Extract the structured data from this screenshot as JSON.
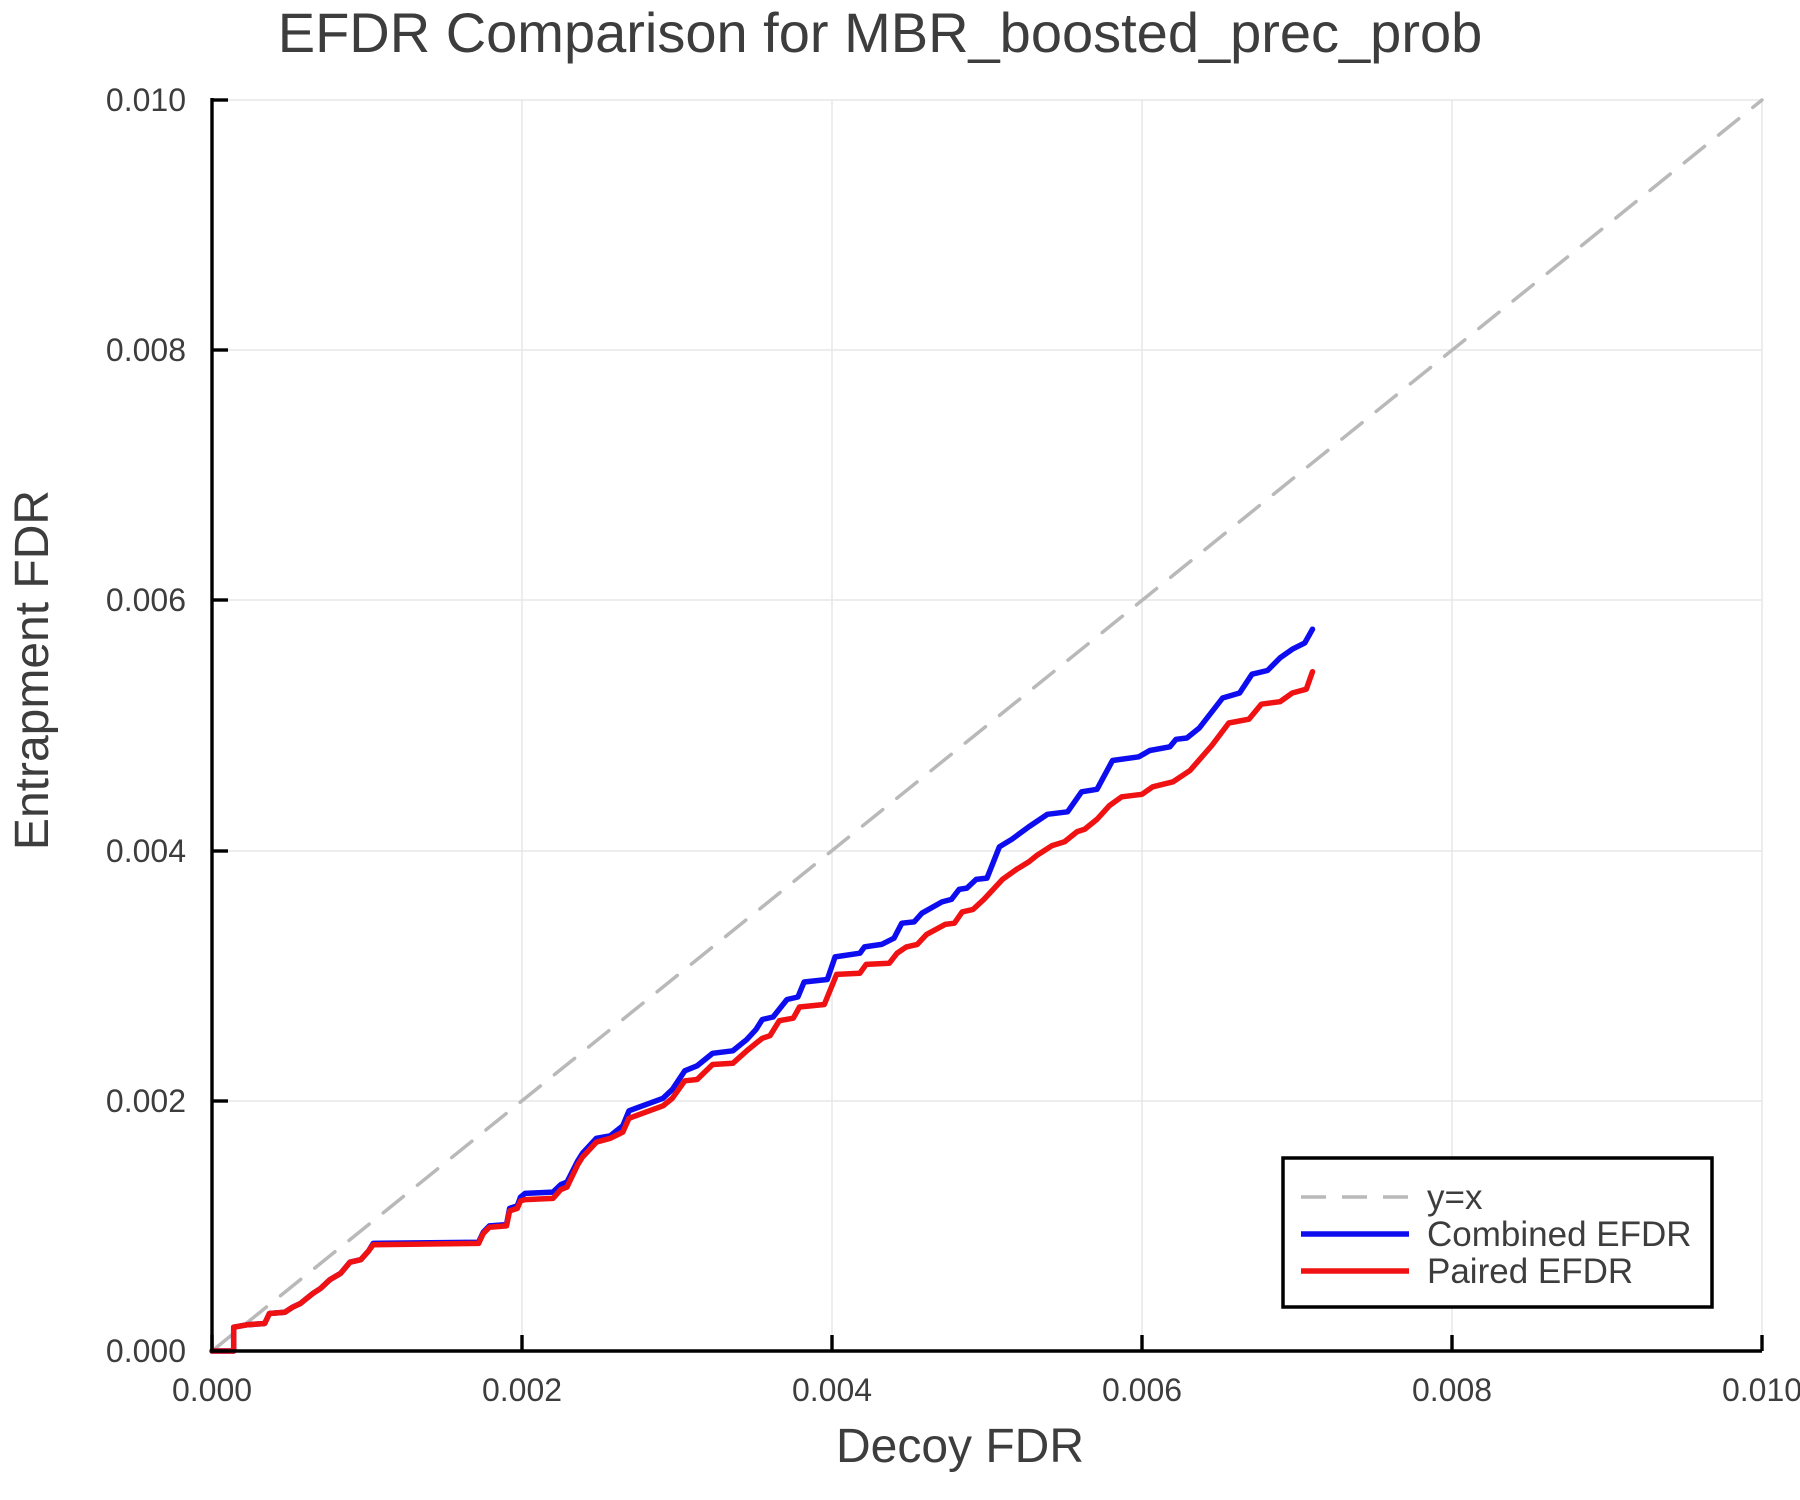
{
  "chart_data": {
    "type": "line",
    "title": "EFDR Comparison for MBR_boosted_prec_prob",
    "xlabel": "Decoy FDR",
    "ylabel": "Entrapment FDR",
    "xlim": [
      0,
      0.01
    ],
    "ylim": [
      0,
      0.01
    ],
    "grid": true,
    "legend_position": "lower right",
    "x_ticks": {
      "values": [
        0,
        0.002,
        0.004,
        0.006,
        0.008,
        0.01
      ],
      "labels": [
        "0.000",
        "0.002",
        "0.004",
        "0.006",
        "0.008",
        "0.010"
      ]
    },
    "y_ticks": {
      "values": [
        0,
        0.002,
        0.004,
        0.006,
        0.008,
        0.01
      ],
      "labels": [
        "0.000",
        "0.002",
        "0.004",
        "0.006",
        "0.008",
        "0.010"
      ]
    },
    "series": [
      {
        "key": "y-equals-x",
        "name": "y=x",
        "color": "#b9b9b9",
        "width": 3.5,
        "dash": [
          26,
          18
        ],
        "points": [
          [
            0,
            0
          ],
          [
            0.01,
            0.01
          ]
        ]
      },
      {
        "key": "combined-efdr",
        "name": "Combined EFDR",
        "color": "#0d0df0",
        "width": 5.5,
        "points": [
          [
            0,
            0
          ],
          [
            0.00014,
            0
          ],
          [
            0.00014,
            0.00019
          ],
          [
            0.00023,
            0.00021
          ],
          [
            0.00034,
            0.00022
          ],
          [
            0.00037,
            0.0003
          ],
          [
            0.00047,
            0.00031
          ],
          [
            0.00052,
            0.00035
          ],
          [
            0.00057,
            0.00038
          ],
          [
            0.00065,
            0.00046
          ],
          [
            0.0007,
            0.0005
          ],
          [
            0.00076,
            0.00057
          ],
          [
            0.00083,
            0.00062
          ],
          [
            0.00089,
            0.00071
          ],
          [
            0.00096,
            0.00073
          ],
          [
            0.00101,
            0.0008
          ],
          [
            0.00104,
            0.00086
          ],
          [
            0.00172,
            0.00087
          ],
          [
            0.00175,
            0.00095
          ],
          [
            0.00179,
            0.001
          ],
          [
            0.0019,
            0.00101
          ],
          [
            0.00192,
            0.00114
          ],
          [
            0.00197,
            0.00116
          ],
          [
            0.00199,
            0.00123
          ],
          [
            0.00202,
            0.00126
          ],
          [
            0.0022,
            0.00127
          ],
          [
            0.00225,
            0.00133
          ],
          [
            0.00229,
            0.00135
          ],
          [
            0.00236,
            0.00152
          ],
          [
            0.00239,
            0.00158
          ],
          [
            0.00248,
            0.0017
          ],
          [
            0.00257,
            0.00172
          ],
          [
            0.00265,
            0.0018
          ],
          [
            0.00269,
            0.00192
          ],
          [
            0.00291,
            0.00202
          ],
          [
            0.00297,
            0.00209
          ],
          [
            0.00305,
            0.00224
          ],
          [
            0.00313,
            0.00228
          ],
          [
            0.00323,
            0.00238
          ],
          [
            0.00336,
            0.0024
          ],
          [
            0.00345,
            0.00249
          ],
          [
            0.00351,
            0.00257
          ],
          [
            0.00355,
            0.00265
          ],
          [
            0.00362,
            0.00267
          ],
          [
            0.00371,
            0.00281
          ],
          [
            0.00378,
            0.00283
          ],
          [
            0.00382,
            0.00295
          ],
          [
            0.00397,
            0.00297
          ],
          [
            0.00402,
            0.00315
          ],
          [
            0.00418,
            0.00318
          ],
          [
            0.00421,
            0.00323
          ],
          [
            0.00432,
            0.00325
          ],
          [
            0.0044,
            0.0033
          ],
          [
            0.00445,
            0.00342
          ],
          [
            0.00453,
            0.00343
          ],
          [
            0.00458,
            0.0035
          ],
          [
            0.00471,
            0.00359
          ],
          [
            0.00477,
            0.00361
          ],
          [
            0.00482,
            0.00369
          ],
          [
            0.00487,
            0.0037
          ],
          [
            0.00493,
            0.00377
          ],
          [
            0.005,
            0.00378
          ],
          [
            0.00508,
            0.00403
          ],
          [
            0.00516,
            0.00409
          ],
          [
            0.00527,
            0.00419
          ],
          [
            0.00539,
            0.00429
          ],
          [
            0.00552,
            0.00431
          ],
          [
            0.00561,
            0.00447
          ],
          [
            0.00571,
            0.00449
          ],
          [
            0.00581,
            0.00472
          ],
          [
            0.00598,
            0.00475
          ],
          [
            0.00605,
            0.0048
          ],
          [
            0.00618,
            0.00483
          ],
          [
            0.00622,
            0.00489
          ],
          [
            0.00629,
            0.0049
          ],
          [
            0.00637,
            0.00498
          ],
          [
            0.00652,
            0.00522
          ],
          [
            0.00663,
            0.00526
          ],
          [
            0.00671,
            0.00541
          ],
          [
            0.00681,
            0.00544
          ],
          [
            0.00689,
            0.00554
          ],
          [
            0.00697,
            0.00561
          ],
          [
            0.00705,
            0.00566
          ],
          [
            0.0071,
            0.00577
          ]
        ]
      },
      {
        "key": "paired-efdr",
        "name": "Paired EFDR",
        "color": "#f01212",
        "width": 5.5,
        "points": [
          [
            0,
            0
          ],
          [
            0.00014,
            0
          ],
          [
            0.00014,
            0.00019
          ],
          [
            0.00023,
            0.00021
          ],
          [
            0.00034,
            0.00022
          ],
          [
            0.00037,
            0.0003
          ],
          [
            0.00047,
            0.00031
          ],
          [
            0.00052,
            0.00035
          ],
          [
            0.00057,
            0.00038
          ],
          [
            0.00065,
            0.00046
          ],
          [
            0.0007,
            0.0005
          ],
          [
            0.00076,
            0.00057
          ],
          [
            0.00083,
            0.00062
          ],
          [
            0.00089,
            0.00071
          ],
          [
            0.00096,
            0.00073
          ],
          [
            0.00101,
            0.0008
          ],
          [
            0.00104,
            0.00085
          ],
          [
            0.00172,
            0.00086
          ],
          [
            0.00175,
            0.00094
          ],
          [
            0.00179,
            0.00099
          ],
          [
            0.0019,
            0.001
          ],
          [
            0.00192,
            0.00112
          ],
          [
            0.00197,
            0.00114
          ],
          [
            0.00199,
            0.0012
          ],
          [
            0.00202,
            0.00121
          ],
          [
            0.0022,
            0.00122
          ],
          [
            0.00225,
            0.00129
          ],
          [
            0.00229,
            0.00131
          ],
          [
            0.00236,
            0.00149
          ],
          [
            0.00239,
            0.00155
          ],
          [
            0.00248,
            0.00167
          ],
          [
            0.00257,
            0.0017
          ],
          [
            0.00265,
            0.00175
          ],
          [
            0.00269,
            0.00186
          ],
          [
            0.00291,
            0.00196
          ],
          [
            0.00297,
            0.00202
          ],
          [
            0.00305,
            0.00216
          ],
          [
            0.00313,
            0.00217
          ],
          [
            0.00323,
            0.00229
          ],
          [
            0.00336,
            0.0023
          ],
          [
            0.00345,
            0.0024
          ],
          [
            0.00351,
            0.00246
          ],
          [
            0.00355,
            0.0025
          ],
          [
            0.0036,
            0.00252
          ],
          [
            0.00366,
            0.00264
          ],
          [
            0.00375,
            0.00266
          ],
          [
            0.00379,
            0.00275
          ],
          [
            0.00395,
            0.00277
          ],
          [
            0.00403,
            0.00301
          ],
          [
            0.00418,
            0.00302
          ],
          [
            0.00422,
            0.00309
          ],
          [
            0.00437,
            0.0031
          ],
          [
            0.00442,
            0.00318
          ],
          [
            0.00448,
            0.00323
          ],
          [
            0.00455,
            0.00325
          ],
          [
            0.00461,
            0.00333
          ],
          [
            0.00473,
            0.00341
          ],
          [
            0.00479,
            0.00342
          ],
          [
            0.00484,
            0.00351
          ],
          [
            0.00491,
            0.00353
          ],
          [
            0.00498,
            0.00361
          ],
          [
            0.0051,
            0.00377
          ],
          [
            0.00519,
            0.00385
          ],
          [
            0.00527,
            0.00391
          ],
          [
            0.00532,
            0.00396
          ],
          [
            0.00542,
            0.00404
          ],
          [
            0.0055,
            0.00407
          ],
          [
            0.00558,
            0.00415
          ],
          [
            0.00563,
            0.00417
          ],
          [
            0.00571,
            0.00425
          ],
          [
            0.00579,
            0.00436
          ],
          [
            0.00587,
            0.00443
          ],
          [
            0.006,
            0.00445
          ],
          [
            0.00607,
            0.00451
          ],
          [
            0.0062,
            0.00455
          ],
          [
            0.00631,
            0.00464
          ],
          [
            0.00645,
            0.00484
          ],
          [
            0.00656,
            0.00502
          ],
          [
            0.00669,
            0.00505
          ],
          [
            0.00677,
            0.00517
          ],
          [
            0.00689,
            0.00519
          ],
          [
            0.00697,
            0.00526
          ],
          [
            0.00706,
            0.00529
          ],
          [
            0.0071,
            0.00543
          ]
        ]
      }
    ]
  },
  "legend": {
    "border_color": "#000000",
    "background": "#ffffff"
  },
  "style_colors": {
    "text": "#3d3d3d",
    "spine": "#000000",
    "gridline": "#e7e7e7"
  }
}
